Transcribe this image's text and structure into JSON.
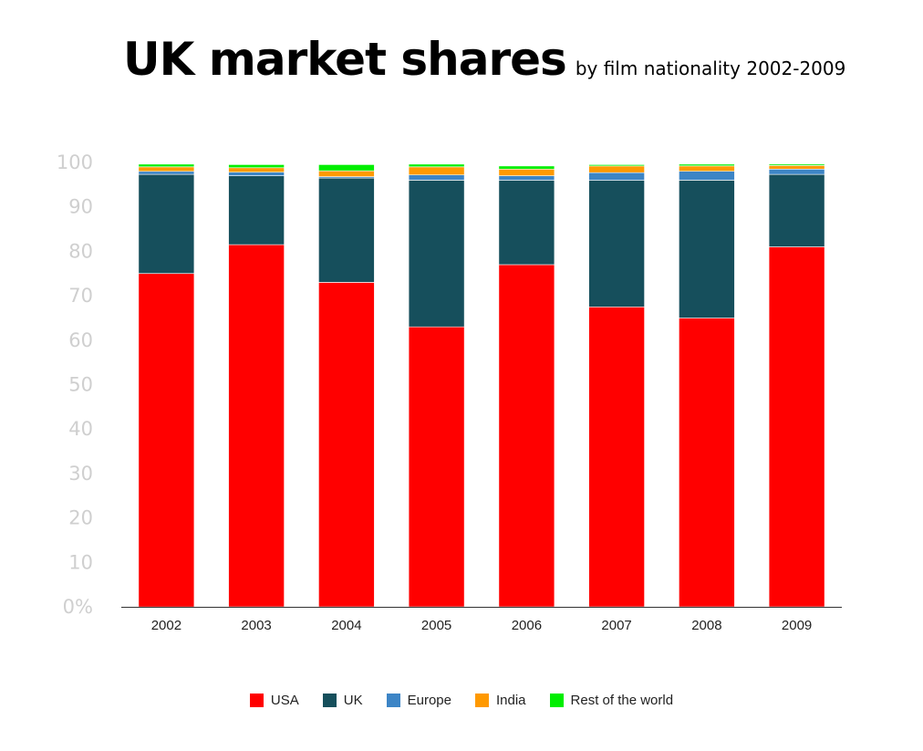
{
  "header": {
    "title": "UK market shares",
    "subtitle": "by film nationality 2002-2009"
  },
  "chart_data": {
    "type": "bar",
    "stacked": true,
    "categories": [
      "2002",
      "2003",
      "2004",
      "2005",
      "2006",
      "2007",
      "2008",
      "2009"
    ],
    "y_ticks": [
      "0%",
      "10",
      "20",
      "30",
      "40",
      "50",
      "60",
      "70",
      "80",
      "90",
      "100"
    ],
    "ylim": [
      0,
      100
    ],
    "grid": false,
    "legend_position": "bottom",
    "series": [
      {
        "name": "USA",
        "color": "#ff0000",
        "values": [
          75.0,
          81.5,
          73.0,
          63.0,
          77.0,
          67.5,
          65.0,
          81.0
        ]
      },
      {
        "name": "UK",
        "color": "#164f5c",
        "values": [
          22.3,
          15.5,
          23.5,
          33.0,
          19.0,
          28.5,
          31.0,
          16.3
        ]
      },
      {
        "name": "Europe",
        "color": "#3d85c6",
        "values": [
          0.7,
          0.8,
          0.3,
          1.2,
          1.0,
          1.7,
          2.0,
          1.2
        ]
      },
      {
        "name": "India",
        "color": "#ff9900",
        "values": [
          1.0,
          1.0,
          1.3,
          1.8,
          1.5,
          1.5,
          1.2,
          0.8
        ]
      },
      {
        "name": "Rest of the world",
        "color": "#00ee00",
        "values": [
          0.6,
          0.7,
          1.4,
          0.6,
          0.7,
          0.3,
          0.4,
          0.3
        ]
      }
    ]
  }
}
